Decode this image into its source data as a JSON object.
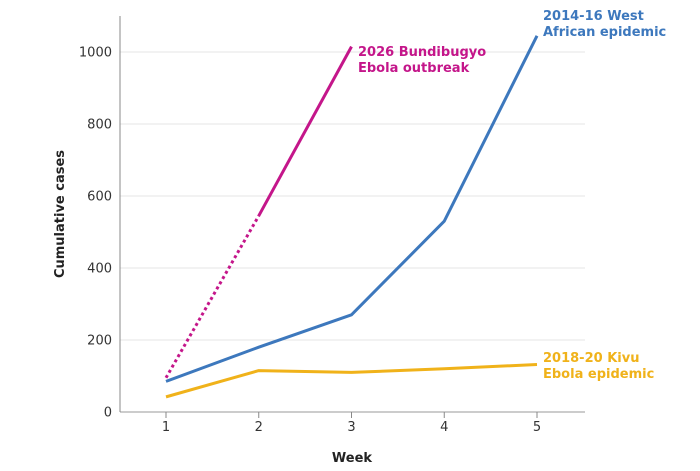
{
  "chart_data": {
    "type": "line",
    "xlabel": "Week",
    "ylabel": "Cumulative cases",
    "x_ticks": [
      "1",
      "2",
      "3",
      "4",
      "5"
    ],
    "y_ticks": [
      "0",
      "200",
      "400",
      "600",
      "800",
      "1000"
    ],
    "xlim": [
      0.5,
      5.5
    ],
    "ylim": [
      0,
      1100
    ],
    "grid": "horizontal",
    "legend": "inline labels at line ends",
    "series": [
      {
        "name_lines": [
          "2026 Bundibugyo",
          "Ebola outbreak"
        ],
        "color": "#c4168a",
        "x": [
          1,
          2,
          3
        ],
        "y": [
          95,
          545,
          1015
        ],
        "dashed_segment": [
          1,
          2
        ]
      },
      {
        "name_lines": [
          "2014-16 West",
          "African epidemic"
        ],
        "color": "#3d78bd",
        "x": [
          1,
          2,
          3,
          4,
          5
        ],
        "y": [
          85,
          180,
          270,
          530,
          1045
        ]
      },
      {
        "name_lines": [
          "2018-20 Kivu",
          "Ebola epidemic"
        ],
        "color": "#f0b21a",
        "x": [
          1,
          2,
          3,
          4,
          5
        ],
        "y": [
          42,
          115,
          110,
          120,
          132
        ]
      }
    ]
  }
}
